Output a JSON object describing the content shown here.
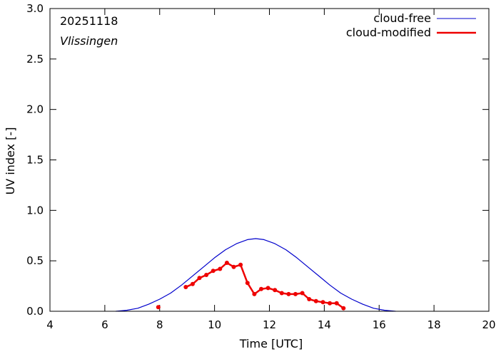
{
  "chart_data": {
    "type": "line",
    "date_label": "20251118",
    "location": "Vlissingen",
    "xlabel": "Time  [UTC]",
    "ylabel": "UV index  [-]",
    "xlim": [
      4,
      20
    ],
    "ylim": [
      0,
      3.0
    ],
    "xticks": [
      "4",
      "6",
      "8",
      "10",
      "12",
      "14",
      "16",
      "18",
      "20"
    ],
    "yticks": [
      "0.0",
      "0.5",
      "1.0",
      "1.5",
      "2.0",
      "2.5",
      "3.0"
    ],
    "grid": false,
    "legend_position": "top-right",
    "series": [
      {
        "name": "cloud-free",
        "color": "#0000cc",
        "style": "line",
        "peak_x": 11.5,
        "peak_y": 0.72,
        "x": [
          6.4,
          6.8,
          7.2,
          7.6,
          8.0,
          8.4,
          8.8,
          9.2,
          9.6,
          10.0,
          10.4,
          10.8,
          11.2,
          11.5,
          11.8,
          12.2,
          12.6,
          13.0,
          13.4,
          13.8,
          14.2,
          14.6,
          15.0,
          15.4,
          15.8,
          16.2,
          16.6
        ],
        "y": [
          0.0,
          0.01,
          0.03,
          0.07,
          0.12,
          0.18,
          0.26,
          0.35,
          0.44,
          0.53,
          0.61,
          0.67,
          0.71,
          0.72,
          0.71,
          0.67,
          0.61,
          0.53,
          0.44,
          0.35,
          0.26,
          0.18,
          0.12,
          0.07,
          0.03,
          0.01,
          0.0
        ]
      },
      {
        "name": "cloud-modified",
        "color": "#ee0000",
        "style": "linespoints",
        "segments": [
          {
            "x": [
              7.95
            ],
            "y": [
              0.04
            ]
          },
          {
            "x": [
              8.95,
              9.2,
              9.45,
              9.7,
              9.95,
              10.2,
              10.45,
              10.7,
              10.95,
              11.2,
              11.45,
              11.7,
              11.95,
              12.2,
              12.45,
              12.7,
              12.95,
              13.2,
              13.45,
              13.7,
              13.95,
              14.2,
              14.45,
              14.7
            ],
            "y": [
              0.24,
              0.27,
              0.33,
              0.36,
              0.4,
              0.42,
              0.48,
              0.44,
              0.46,
              0.28,
              0.17,
              0.22,
              0.23,
              0.21,
              0.18,
              0.17,
              0.17,
              0.18,
              0.12,
              0.1,
              0.09,
              0.08,
              0.08,
              0.03
            ]
          }
        ]
      }
    ]
  }
}
